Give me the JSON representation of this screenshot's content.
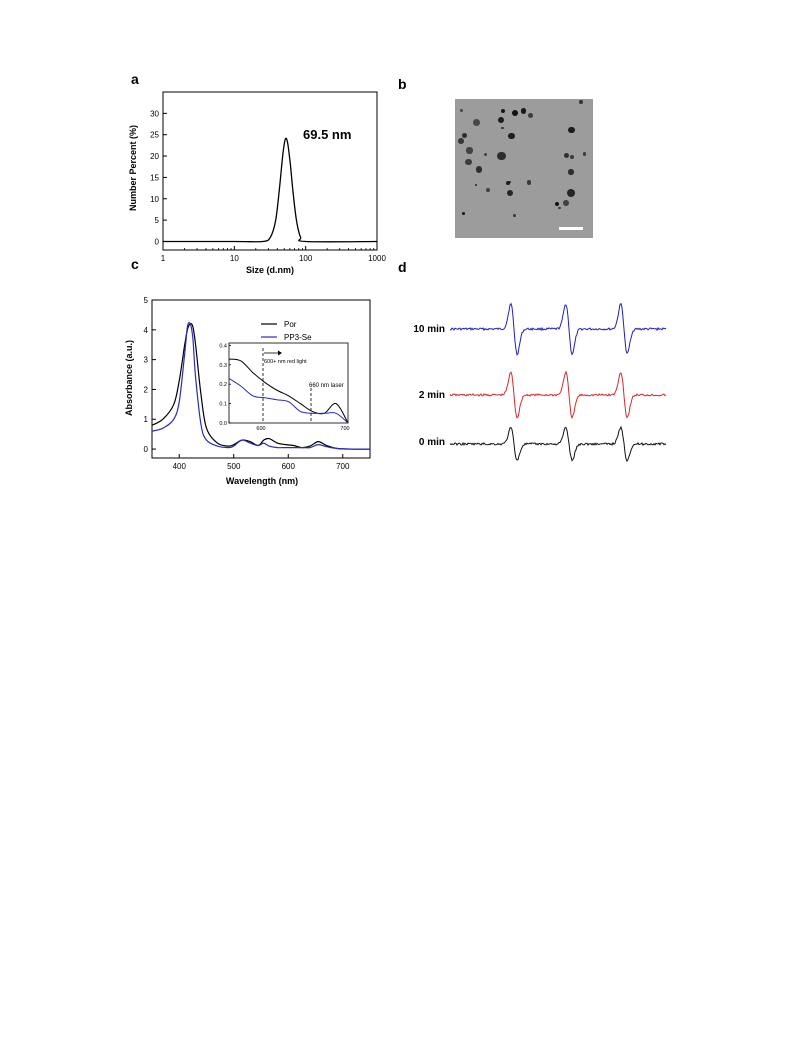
{
  "panels": {
    "a": "a",
    "b": "b",
    "c": "c",
    "d": "d"
  },
  "chart_data": [
    {
      "panel": "a",
      "type": "line",
      "xscale": "log",
      "xlabel": "Size (d.nm)",
      "ylabel": "Number Percent (%)",
      "xlim": [
        1,
        1000
      ],
      "ylim": [
        -2,
        35
      ],
      "xticks": [
        1,
        10,
        100,
        1000
      ],
      "xtick_labels": [
        "1",
        "10",
        "100",
        "1000"
      ],
      "yticks": [
        0,
        5,
        10,
        15,
        20,
        25,
        30
      ],
      "ytick_labels": [
        "0",
        "5",
        "10",
        "15",
        "20",
        "25",
        "30"
      ],
      "annotation": "69.5 nm",
      "series": [
        {
          "color": "#000000",
          "x": [
            1,
            10,
            25,
            32,
            38,
            43,
            48,
            52,
            56,
            61,
            67,
            75,
            85,
            100,
            1000
          ],
          "y": [
            0,
            0,
            0,
            1.0,
            5.0,
            12.5,
            20.5,
            24.0,
            23.0,
            18.0,
            11.0,
            4.5,
            1.0,
            0,
            0
          ]
        }
      ]
    },
    {
      "panel": "c",
      "type": "line",
      "xlabel": "Wavelength (nm)",
      "ylabel": "Absorbance (a.u.)",
      "xlim": [
        350,
        750
      ],
      "ylim": [
        -0.3,
        5
      ],
      "xticks": [
        400,
        500,
        600,
        700
      ],
      "xtick_labels": [
        "400",
        "500",
        "600",
        "700"
      ],
      "yticks": [
        0,
        1,
        2,
        3,
        4,
        5
      ],
      "ytick_labels": [
        "0",
        "1",
        "2",
        "3",
        "4",
        "5"
      ],
      "legend": [
        "Por",
        "PP3-Se"
      ],
      "legend_position": "top-right",
      "series": [
        {
          "name": "Por",
          "color": "#000000",
          "x": [
            350,
            370,
            390,
            400,
            410,
            415,
            420,
            425,
            430,
            440,
            450,
            470,
            490,
            500,
            515,
            530,
            545,
            555,
            565,
            580,
            595,
            610,
            625,
            640,
            655,
            670,
            690,
            720,
            750
          ],
          "y": [
            0.8,
            1.0,
            1.5,
            2.3,
            3.5,
            4.0,
            4.2,
            4.1,
            3.5,
            1.8,
            0.7,
            0.2,
            0.1,
            0.15,
            0.3,
            0.25,
            0.12,
            0.3,
            0.35,
            0.2,
            0.15,
            0.12,
            0.05,
            0.1,
            0.25,
            0.12,
            0.02,
            0.0,
            0.0
          ]
        },
        {
          "name": "PP3-Se",
          "color": "#2b2bb8",
          "x": [
            350,
            370,
            390,
            400,
            410,
            415,
            420,
            425,
            430,
            440,
            450,
            470,
            490,
            500,
            515,
            530,
            545,
            555,
            565,
            580,
            595,
            610,
            625,
            640,
            655,
            670,
            690,
            720,
            750
          ],
          "y": [
            0.6,
            0.7,
            1.0,
            1.6,
            3.2,
            4.1,
            4.2,
            3.7,
            2.4,
            0.8,
            0.3,
            0.1,
            0.05,
            0.1,
            0.3,
            0.2,
            0.12,
            0.2,
            0.1,
            0.05,
            0.05,
            0.05,
            0.05,
            0.05,
            0.15,
            0.08,
            0.02,
            0.0,
            0.0
          ]
        }
      ],
      "inset": {
        "xlim": [
          600,
          700
        ],
        "ylim": [
          0,
          0.4
        ],
        "xticks": [
          600,
          700
        ],
        "xtick_labels": [
          "600",
          "700"
        ],
        "yticks": [
          0,
          0.1,
          0.2,
          0.3,
          0.4
        ],
        "ytick_labels": [
          "0.0",
          "0.1",
          "0.2",
          "0.3",
          "0.4"
        ],
        "annotations": [
          "600+ nm red light",
          "660 nm laser"
        ],
        "vlines": [
          660,
          700
        ],
        "series": [
          {
            "name": "Por",
            "color": "#000000",
            "x": [
              600,
              610,
              620,
              630,
              640,
              650,
              660,
              670,
              680,
              690,
              700
            ],
            "y": [
              0.33,
              0.32,
              0.26,
              0.21,
              0.17,
              0.14,
              0.1,
              0.06,
              0.05,
              0.1,
              0.0
            ]
          },
          {
            "name": "PP3-Se",
            "color": "#2b2bb8",
            "x": [
              600,
              610,
              620,
              630,
              640,
              650,
              660,
              670,
              680,
              690,
              700
            ],
            "y": [
              0.23,
              0.19,
              0.14,
              0.13,
              0.12,
              0.11,
              0.06,
              0.05,
              0.05,
              0.05,
              0.0
            ]
          }
        ]
      }
    },
    {
      "panel": "d",
      "type": "line",
      "series": [
        {
          "name": "10 min",
          "color": "#1f1fbf",
          "amplitude": 1.0
        },
        {
          "name": "2 min",
          "color": "#d42a2a",
          "amplitude": 0.9
        },
        {
          "name": "0 min",
          "color": "#111111",
          "amplitude": 0.65
        }
      ]
    }
  ]
}
